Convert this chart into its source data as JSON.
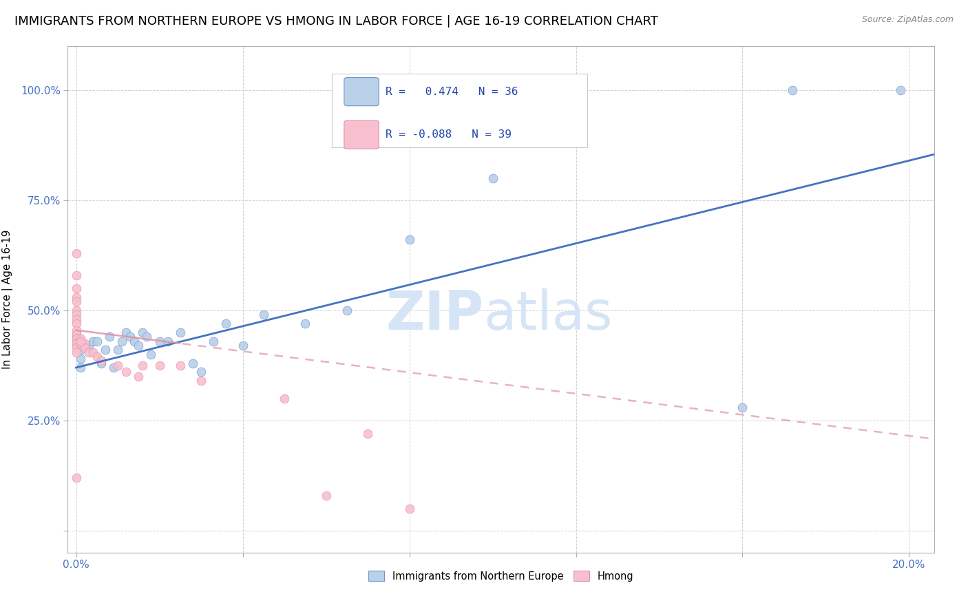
{
  "title": "IMMIGRANTS FROM NORTHERN EUROPE VS HMONG IN LABOR FORCE | AGE 16-19 CORRELATION CHART",
  "source": "Source: ZipAtlas.com",
  "ylabel": "In Labor Force | Age 16-19",
  "blue_r": 0.474,
  "blue_n": 36,
  "pink_r": -0.088,
  "pink_n": 39,
  "blue_dot_color": "#b8d0e8",
  "blue_edge_color": "#7097cc",
  "blue_line_color": "#4472c4",
  "pink_dot_color": "#f8c0ce",
  "pink_edge_color": "#e090a8",
  "pink_line_color": "#e090a8",
  "watermark_color": "#d5e5f5",
  "xlim": [
    -0.002,
    0.206
  ],
  "ylim": [
    -0.05,
    1.1
  ],
  "blue_scatter_x": [
    0.001,
    0.001,
    0.001,
    0.002,
    0.003,
    0.004,
    0.005,
    0.006,
    0.007,
    0.008,
    0.009,
    0.01,
    0.011,
    0.012,
    0.013,
    0.014,
    0.015,
    0.016,
    0.017,
    0.018,
    0.02,
    0.022,
    0.025,
    0.028,
    0.03,
    0.033,
    0.036,
    0.04,
    0.045,
    0.055,
    0.065,
    0.08,
    0.1,
    0.16,
    0.172,
    0.198
  ],
  "blue_scatter_y": [
    0.37,
    0.39,
    0.41,
    0.42,
    0.42,
    0.43,
    0.43,
    0.38,
    0.41,
    0.44,
    0.37,
    0.41,
    0.43,
    0.45,
    0.44,
    0.43,
    0.42,
    0.45,
    0.44,
    0.4,
    0.43,
    0.43,
    0.45,
    0.38,
    0.36,
    0.43,
    0.47,
    0.42,
    0.49,
    0.47,
    0.5,
    0.66,
    0.8,
    0.28,
    1.0,
    1.0
  ],
  "pink_scatter_x": [
    0.0,
    0.0,
    0.0,
    0.0,
    0.0,
    0.0,
    0.0,
    0.0,
    0.0,
    0.0,
    0.0,
    0.0,
    0.0,
    0.0,
    0.0,
    0.0,
    0.0,
    0.0,
    0.0,
    0.001,
    0.001,
    0.002,
    0.002,
    0.003,
    0.004,
    0.005,
    0.006,
    0.01,
    0.012,
    0.015,
    0.016,
    0.02,
    0.025,
    0.03,
    0.05,
    0.06,
    0.07,
    0.08,
    0.001
  ],
  "pink_scatter_y": [
    0.63,
    0.58,
    0.55,
    0.53,
    0.52,
    0.5,
    0.49,
    0.48,
    0.47,
    0.455,
    0.445,
    0.445,
    0.435,
    0.435,
    0.425,
    0.425,
    0.415,
    0.405,
    0.12,
    0.435,
    0.425,
    0.425,
    0.415,
    0.405,
    0.405,
    0.395,
    0.385,
    0.375,
    0.36,
    0.35,
    0.375,
    0.375,
    0.375,
    0.34,
    0.3,
    0.08,
    0.22,
    0.05,
    0.43
  ],
  "x_tick_positions": [
    0.0,
    0.04,
    0.08,
    0.12,
    0.16,
    0.2
  ],
  "x_tick_labels": [
    "0.0%",
    "",
    "",
    "",
    "",
    "20.0%"
  ],
  "y_tick_positions": [
    0.0,
    0.25,
    0.5,
    0.75,
    1.0
  ],
  "y_tick_labels": [
    "",
    "25.0%",
    "50.0%",
    "75.0%",
    "100.0%"
  ],
  "title_fontsize": 13,
  "source_fontsize": 9,
  "tick_fontsize": 11,
  "label_fontsize": 11,
  "legend_fontsize": 12,
  "blue_line_intercept": 0.37,
  "blue_line_slope": 2.35,
  "pink_line_intercept": 0.455,
  "pink_line_slope": -1.2
}
